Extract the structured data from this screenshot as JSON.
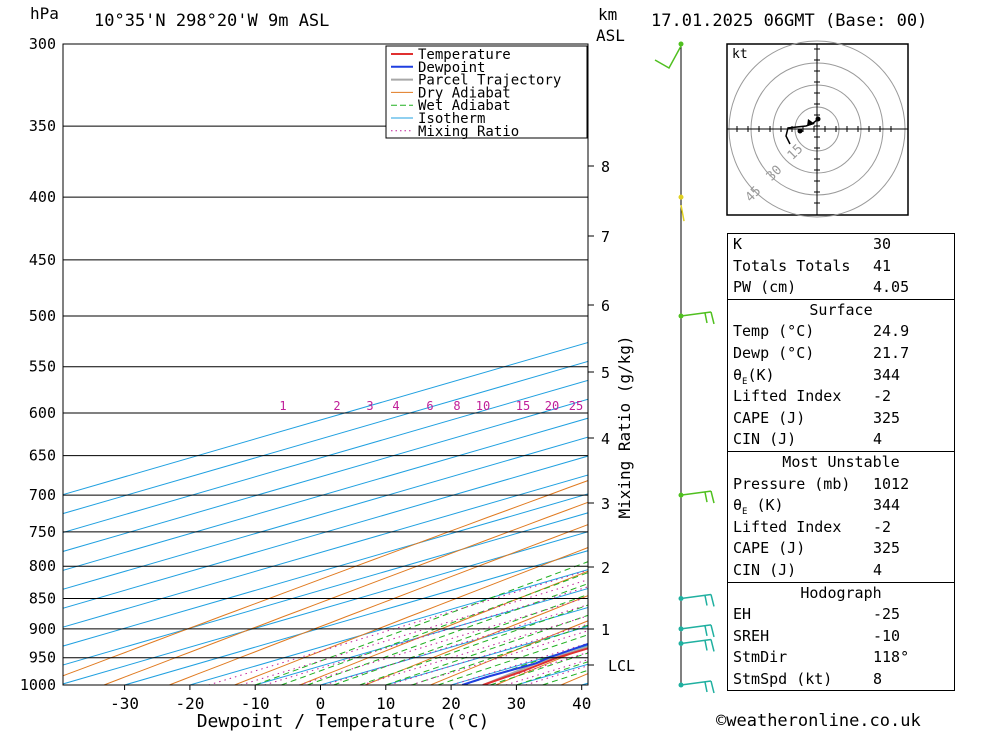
{
  "header": {
    "hpa_unit": "hPa",
    "location": "10°35'N 298°20'W 9m ASL",
    "km_unit": "km",
    "asl_unit": "ASL",
    "datetime": "17.01.2025 06GMT (Base: 00)"
  },
  "footer": {
    "copyright_symbol": "©",
    "site": "weatheronline.co.uk"
  },
  "chart_data": {
    "type": "line",
    "subtype": "skew-T log-P sounding",
    "xlabel": "Dewpoint / Temperature (°C)",
    "ylabel": "hPa",
    "secondary_ylabel": "Mixing Ratio (g/kg)",
    "x_ticks": [
      -30,
      -20,
      -10,
      0,
      10,
      20,
      30,
      40
    ],
    "pressure_levels": [
      300,
      350,
      400,
      450,
      500,
      550,
      600,
      650,
      700,
      750,
      800,
      850,
      900,
      950,
      1000
    ],
    "height_ticks_km": [
      1,
      2,
      3,
      4,
      5,
      6,
      7,
      8
    ],
    "lcl_label": "LCL",
    "mixing_ratio_labels": [
      "1",
      "2",
      "3",
      "4",
      "6",
      "8",
      "10",
      "15",
      "20",
      "25"
    ],
    "legend": [
      "Temperature",
      "Dewpoint",
      "Parcel Trajectory",
      "Dry Adiabat",
      "Wet Adiabat",
      "Isotherm",
      "Mixing Ratio"
    ],
    "legend_position": "top-center",
    "colors": {
      "temperature": "#e03030",
      "dewpoint": "#1f3fe0",
      "parcel": "#a8a8a8",
      "dry_adiabat": "#e07a20",
      "wet_adiabat": "#20b020",
      "isotherm": "#20a0e0",
      "mixing_ratio": "#c0209a",
      "wind_barb": "#50c020",
      "wind_barb_low": "#20b0a0"
    },
    "series": [
      {
        "name": "Temperature",
        "points": [
          [
            1000,
            24.9
          ],
          [
            975,
            23.7
          ],
          [
            950,
            21.8
          ],
          [
            925,
            21.5
          ],
          [
            900,
            20.6
          ],
          [
            850,
            18.8
          ],
          [
            800,
            16.9
          ],
          [
            750,
            15.0
          ],
          [
            700,
            12.5
          ],
          [
            650,
            10.0
          ],
          [
            600,
            9.0
          ],
          [
            550,
            5.0
          ],
          [
            500,
            -0.8
          ],
          [
            450,
            -7.5
          ],
          [
            400,
            -15.0
          ],
          [
            350,
            -24.5
          ],
          [
            300,
            -35.0
          ]
        ]
      },
      {
        "name": "Dewpoint",
        "points": [
          [
            1000,
            21.7
          ],
          [
            985,
            21.2
          ],
          [
            960,
            21.5
          ],
          [
            950,
            20.5
          ],
          [
            925,
            19.2
          ],
          [
            900,
            17.0
          ],
          [
            850,
            14.0
          ],
          [
            800,
            10.5
          ],
          [
            750,
            6.5
          ],
          [
            700,
            2.0
          ],
          [
            650,
            -3.5
          ],
          [
            600,
            -22.5
          ],
          [
            550,
            -18.0
          ],
          [
            500,
            -26.0
          ],
          [
            450,
            -41.0
          ],
          [
            400,
            -48.0
          ],
          [
            350,
            -36.0
          ],
          [
            300,
            -48.0
          ]
        ]
      },
      {
        "name": "Parcel Trajectory",
        "points": [
          [
            1000,
            24.9
          ],
          [
            960,
            21.6
          ],
          [
            900,
            19.8
          ],
          [
            850,
            18.3
          ],
          [
            800,
            16.7
          ],
          [
            750,
            14.8
          ],
          [
            700,
            12.6
          ],
          [
            650,
            10.2
          ],
          [
            600,
            7.3
          ],
          [
            550,
            4.0
          ],
          [
            500,
            0.3
          ],
          [
            450,
            -4.6
          ],
          [
            400,
            -10.8
          ],
          [
            360,
            -17.0
          ]
        ]
      }
    ],
    "wind_profile": [
      {
        "pressure": 300,
        "barb": "light"
      },
      {
        "pressure": 400,
        "barb": "calm"
      },
      {
        "pressure": 500,
        "barb": "10kt"
      },
      {
        "pressure": 700,
        "barb": "10kt"
      },
      {
        "pressure": 850,
        "barb": "10kt"
      },
      {
        "pressure": 900,
        "barb": "10kt"
      },
      {
        "pressure": 925,
        "barb": "10kt"
      },
      {
        "pressure": 1000,
        "barb": "10kt"
      }
    ],
    "hodograph": {
      "unit_label": "kt",
      "ring_labels": [
        "15",
        "30",
        "45"
      ]
    }
  },
  "indices": {
    "general": [
      {
        "label": "K",
        "value": "30"
      },
      {
        "label": "Totals Totals",
        "value": "41"
      },
      {
        "label": "PW (cm)",
        "value": "4.05"
      }
    ],
    "surface": {
      "title": "Surface",
      "rows": [
        {
          "label": "Temp (°C)",
          "value": "24.9"
        },
        {
          "label": "Dewp (°C)",
          "value": "21.7"
        },
        {
          "label": "θE(K)",
          "value": "344"
        },
        {
          "label": "Lifted Index",
          "value": "-2"
        },
        {
          "label": "CAPE (J)",
          "value": "325"
        },
        {
          "label": "CIN (J)",
          "value": "4"
        }
      ]
    },
    "most_unstable": {
      "title": "Most Unstable",
      "rows": [
        {
          "label": "Pressure (mb)",
          "value": "1012"
        },
        {
          "label": "θE (K)",
          "value": "344"
        },
        {
          "label": "Lifted Index",
          "value": "-2"
        },
        {
          "label": "CAPE (J)",
          "value": "325"
        },
        {
          "label": "CIN (J)",
          "value": "4"
        }
      ]
    },
    "hodograph": {
      "title": "Hodograph",
      "rows": [
        {
          "label": "EH",
          "value": "-25"
        },
        {
          "label": "SREH",
          "value": "-10"
        },
        {
          "label": "StmDir",
          "value": "118°"
        },
        {
          "label": "StmSpd (kt)",
          "value": "8"
        }
      ]
    }
  }
}
